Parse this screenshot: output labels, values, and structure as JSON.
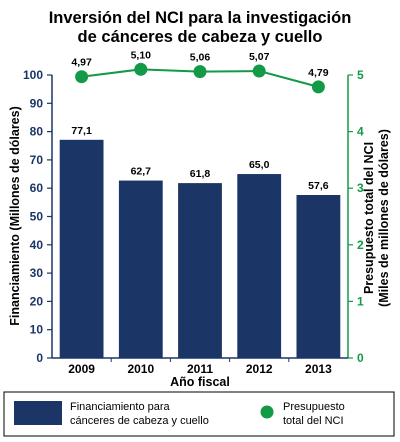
{
  "chart_data": {
    "type": "bar",
    "title_lines": [
      "Inversión del NCI para la investigación",
      "de cánceres de cabeza y cuello"
    ],
    "categories": [
      "2009",
      "2010",
      "2011",
      "2012",
      "2013"
    ],
    "xlabel": "Año fiscal",
    "ylabel_left": "Financiamiento (Millones de dólares)",
    "ylabel_right_lines": [
      "Presupuesto total del NCI",
      "(Miles de millones de dólares)"
    ],
    "y_left": {
      "min": 0,
      "max": 100,
      "step": 10,
      "ticks": [
        "0",
        "10",
        "20",
        "30",
        "40",
        "50",
        "60",
        "70",
        "80",
        "90",
        "100"
      ]
    },
    "y_right": {
      "min": 0,
      "max": 5,
      "step": 1,
      "ticks": [
        "0",
        "1",
        "2",
        "3",
        "4",
        "5"
      ]
    },
    "series": [
      {
        "name_lines": [
          "Financiamiento para",
          "cánceres de cabeza y cuello"
        ],
        "axis": "left",
        "render": "bar",
        "color": "#1b3566",
        "values": [
          77.1,
          62.7,
          61.8,
          65.0,
          57.6
        ],
        "labels": [
          "77,1",
          "62,7",
          "61,8",
          "65,0",
          "57,6"
        ]
      },
      {
        "name_lines": [
          "Presupuesto",
          "total del NCI"
        ],
        "axis": "right",
        "render": "line-marker",
        "color": "#139a47",
        "values": [
          4.97,
          5.1,
          5.06,
          5.07,
          4.79
        ],
        "labels": [
          "4,97",
          "5,10",
          "5,06",
          "5,07",
          "4,79"
        ]
      }
    ],
    "colors": {
      "left_axis": "#1b3566",
      "right_axis": "#139a47",
      "text": "#000000"
    },
    "grid": false,
    "legend_position": "bottom"
  }
}
